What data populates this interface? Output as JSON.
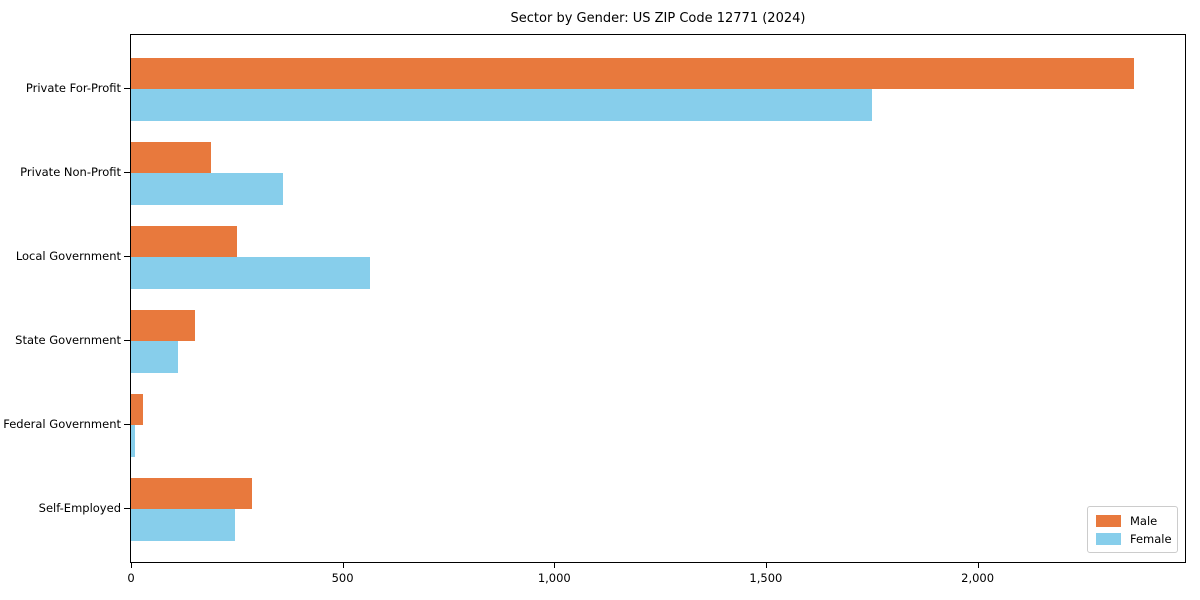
{
  "chart_data": {
    "type": "bar",
    "orientation": "horizontal",
    "title": "Sector by Gender: US ZIP Code 12771 (2024)",
    "categories": [
      "Private For-Profit",
      "Private Non-Profit",
      "Local Government",
      "State Government",
      "Federal Government",
      "Self-Employed"
    ],
    "series": [
      {
        "name": "Male",
        "color": "#e8793d",
        "values": [
          2370,
          190,
          250,
          150,
          28,
          285
        ]
      },
      {
        "name": "Female",
        "color": "#87ceeb",
        "values": [
          1750,
          360,
          565,
          110,
          9,
          245
        ]
      }
    ],
    "xlabel": "",
    "ylabel": "",
    "xlim": [
      0,
      2490
    ],
    "xticks": [
      0,
      500,
      1000,
      1500,
      2000
    ],
    "xtick_labels": [
      "0",
      "500",
      "1,000",
      "1,500",
      "2,000"
    ],
    "grid": false,
    "legend": {
      "position": "lower-right",
      "entries": [
        "Male",
        "Female"
      ]
    }
  }
}
